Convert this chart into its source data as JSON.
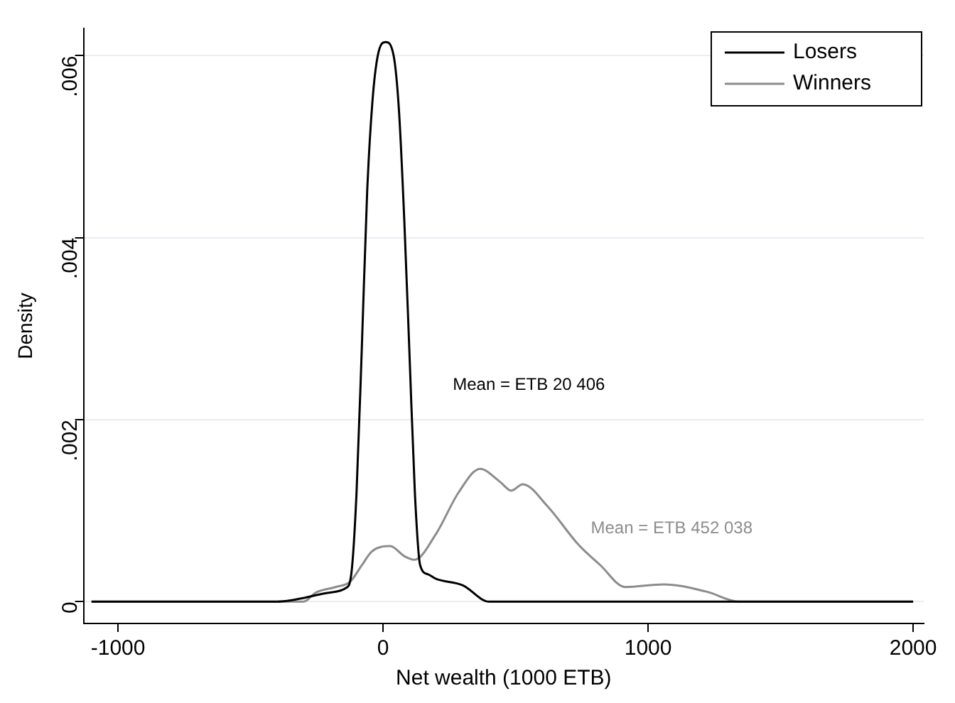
{
  "chart_data": {
    "type": "line",
    "xlabel": "Net wealth (1000 ETB)",
    "ylabel": "Density",
    "xlim": [
      -1130,
      2040
    ],
    "ylim": [
      -0.00024,
      0.0063
    ],
    "xticks": [
      -1000,
      0,
      1000,
      2000
    ],
    "yticks": [
      0,
      {
        "value": 0.002,
        "label": ".002"
      },
      {
        "value": 0.004,
        "label": ".004"
      },
      {
        "value": 0.006,
        "label": ".006"
      }
    ],
    "grid": "y",
    "legend": "top right",
    "marker": "none",
    "line_style": "solid",
    "series": [
      {
        "name": "Losers",
        "color": "#000000",
        "x": [
          -1100,
          -900,
          -600,
          -400,
          -200,
          -140,
          -120,
          -100,
          -80,
          -60,
          -40,
          -20,
          10,
          40,
          60,
          80,
          100,
          120,
          140,
          170,
          200,
          300,
          400,
          450,
          1000,
          2000
        ],
        "values": [
          0,
          0,
          0,
          0,
          0.0001,
          0.00015,
          0.0003,
          0.0012,
          0.0028,
          0.0045,
          0.0055,
          0.006,
          0.00615,
          0.006,
          0.0054,
          0.0042,
          0.0027,
          0.0012,
          0.0004,
          0.0003,
          0.00025,
          0.00018,
          0,
          0,
          0,
          0
        ]
      },
      {
        "name": "Winners",
        "color": "#8c8c8c",
        "x": [
          -1100,
          -800,
          -500,
          -300,
          -253,
          -180,
          -124,
          -80,
          -43,
          27,
          80,
          118,
          199,
          285,
          366,
          440,
          484,
          527,
          620,
          736,
          820,
          914,
          1059,
          1220,
          1344,
          1468,
          1597,
          1800,
          2000
        ],
        "values": [
          0,
          0,
          0,
          0,
          0.0001,
          0.00016,
          0.00022,
          0.0004,
          0.00055,
          0.00061,
          0.0005,
          0.00046,
          0.00074,
          0.0012,
          0.00146,
          0.00132,
          0.00122,
          0.00129,
          0.00105,
          0.00063,
          0.0004,
          0.00016,
          0.00019,
          0.00011,
          0,
          0,
          0,
          0,
          0
        ]
      }
    ],
    "annotations": [
      "Mean = ETB 20 406",
      "Mean = ETB 452 038"
    ]
  }
}
